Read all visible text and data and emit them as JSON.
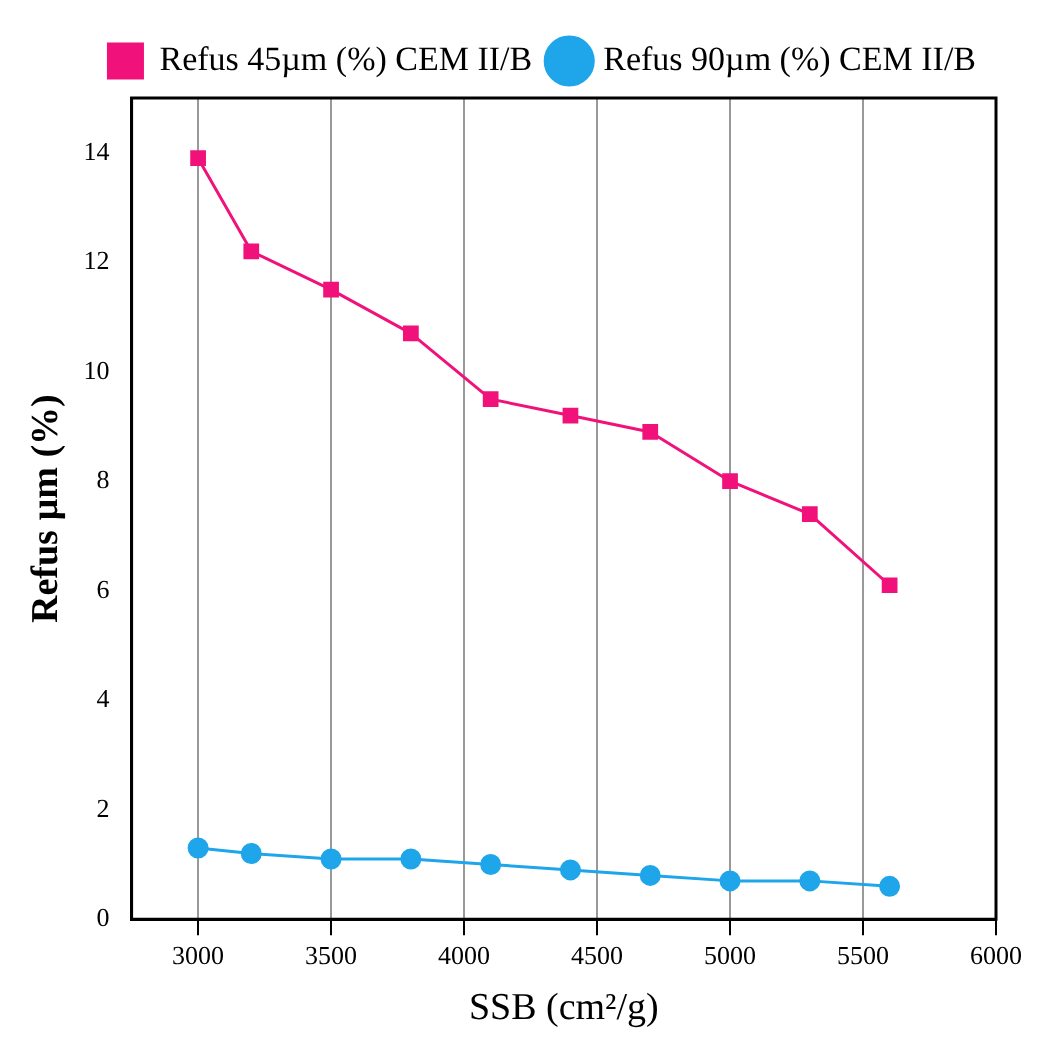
{
  "chart_data": {
    "type": "line",
    "xlabel": "SSB (cm²/g)",
    "ylabel": "Refus µm (%)",
    "x": [
      3000,
      3200,
      3500,
      3800,
      4100,
      4400,
      4700,
      5000,
      5300,
      5600
    ],
    "series": [
      {
        "name": "Refus 45µm (%) CEM II/B",
        "color": "#f0127a",
        "marker": "square",
        "values": [
          13.9,
          12.2,
          11.5,
          10.7,
          9.5,
          9.2,
          8.9,
          8.0,
          7.4,
          6.1
        ]
      },
      {
        "name": "Refus 90µm (%) CEM II/B",
        "color": "#1ea5ea",
        "marker": "circle",
        "values": [
          1.3,
          1.2,
          1.1,
          1.1,
          1.0,
          0.9,
          0.8,
          0.7,
          0.7,
          0.6
        ]
      }
    ],
    "xlim": [
      2750,
      6000
    ],
    "xticks": [
      3000,
      3500,
      4000,
      4500,
      5000,
      5500,
      6000
    ],
    "ylim": [
      0,
      15
    ],
    "yticks": [
      0,
      2,
      4,
      6,
      8,
      10,
      12,
      14
    ],
    "grid": "x",
    "legend": "top right",
    "line_style": "solid"
  }
}
